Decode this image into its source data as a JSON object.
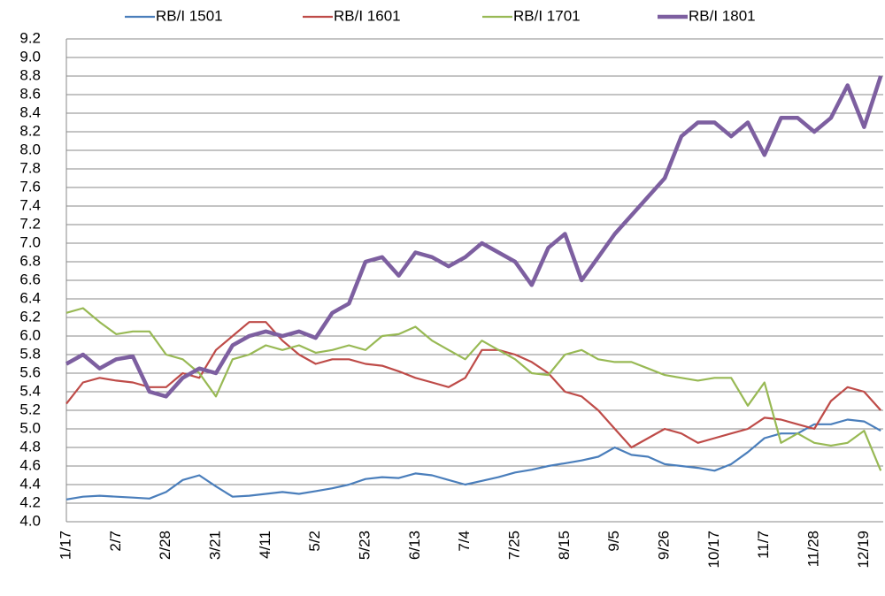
{
  "chart_data": {
    "type": "line",
    "categories": [
      "1/17",
      null,
      null,
      "2/7",
      null,
      null,
      "2/28",
      null,
      null,
      "3/21",
      null,
      null,
      "4/11",
      null,
      null,
      "5/2",
      null,
      null,
      "5/23",
      null,
      null,
      "6/13",
      null,
      null,
      "7/4",
      null,
      null,
      "7/25",
      null,
      null,
      "8/15",
      null,
      null,
      "9/5",
      null,
      null,
      "9/26",
      null,
      null,
      "10/17",
      null,
      null,
      "11/7",
      null,
      null,
      "11/28",
      null,
      null,
      "12/19",
      null
    ],
    "series": [
      {
        "name": "RB/I 1501",
        "color": "#4a7ebb",
        "values": [
          4.24,
          4.27,
          4.28,
          4.27,
          4.26,
          4.25,
          4.32,
          4.45,
          4.5,
          4.38,
          4.27,
          4.28,
          4.3,
          4.32,
          4.3,
          4.33,
          4.36,
          4.4,
          4.46,
          4.48,
          4.47,
          4.52,
          4.5,
          4.45,
          4.4,
          4.44,
          4.48,
          4.53,
          4.56,
          4.6,
          4.63,
          4.66,
          4.7,
          4.8,
          4.72,
          4.7,
          4.62,
          4.6,
          4.58,
          4.55,
          4.62,
          4.75,
          4.9,
          4.95,
          4.95,
          5.05,
          5.05,
          5.1,
          5.08,
          4.98
        ]
      },
      {
        "name": "RB/I 1601",
        "color": "#be4b48",
        "values": [
          5.27,
          5.5,
          5.55,
          5.52,
          5.5,
          5.45,
          5.45,
          5.6,
          5.55,
          5.85,
          6.0,
          6.15,
          6.15,
          5.95,
          5.8,
          5.7,
          5.75,
          5.75,
          5.7,
          5.68,
          5.62,
          5.55,
          5.5,
          5.45,
          5.55,
          5.85,
          5.85,
          5.8,
          5.72,
          5.6,
          5.4,
          5.35,
          5.2,
          5.0,
          4.8,
          4.9,
          5.0,
          4.95,
          4.85,
          4.9,
          4.95,
          5.0,
          5.12,
          5.1,
          5.05,
          5.0,
          5.3,
          5.45,
          5.4,
          5.2
        ]
      },
      {
        "name": "RB/I 1701",
        "color": "#98b954",
        "values": [
          6.25,
          6.3,
          6.15,
          6.02,
          6.05,
          6.05,
          5.8,
          5.75,
          5.6,
          5.35,
          5.75,
          5.8,
          5.9,
          5.85,
          5.9,
          5.82,
          5.85,
          5.9,
          5.85,
          6.0,
          6.02,
          6.1,
          5.95,
          5.85,
          5.75,
          5.95,
          5.85,
          5.75,
          5.6,
          5.58,
          5.8,
          5.85,
          5.75,
          5.72,
          5.72,
          5.65,
          5.58,
          5.55,
          5.52,
          5.55,
          5.55,
          5.25,
          5.5,
          4.85,
          4.95,
          4.85,
          4.82,
          4.85,
          4.98,
          4.55
        ]
      },
      {
        "name": "RB/I 1801",
        "color": "#7d5fa0",
        "values": [
          5.7,
          5.8,
          5.65,
          5.75,
          5.78,
          5.4,
          5.35,
          5.55,
          5.65,
          5.6,
          5.9,
          6.0,
          6.05,
          6.0,
          6.05,
          5.98,
          6.25,
          6.35,
          6.8,
          6.85,
          6.65,
          6.9,
          6.85,
          6.75,
          6.85,
          7.0,
          6.9,
          6.8,
          6.55,
          6.95,
          7.1,
          6.6,
          6.85,
          7.1,
          7.3,
          7.5,
          7.7,
          8.15,
          8.3,
          8.3,
          8.15,
          8.3,
          7.95,
          8.35,
          8.35,
          8.2,
          8.35,
          8.7,
          8.25,
          8.8
        ]
      }
    ],
    "ylim": [
      4,
      9.2
    ],
    "yticks": [
      {
        "value": 4,
        "label": "4.0"
      },
      4.2,
      4.4,
      4.6,
      4.8,
      {
        "value": 5,
        "label": "5.0"
      },
      5.2,
      5.4,
      5.6,
      5.8,
      {
        "value": 6,
        "label": "6.0"
      },
      6.2,
      6.4,
      6.6,
      6.8,
      {
        "value": 7,
        "label": "7.0"
      },
      7.2,
      7.4,
      7.6,
      7.8,
      {
        "value": 8,
        "label": "8.0"
      },
      8.2,
      8.4,
      8.6,
      8.8,
      {
        "value": 9,
        "label": "9.0"
      },
      9.2
    ],
    "grid": true,
    "legend": "top"
  }
}
